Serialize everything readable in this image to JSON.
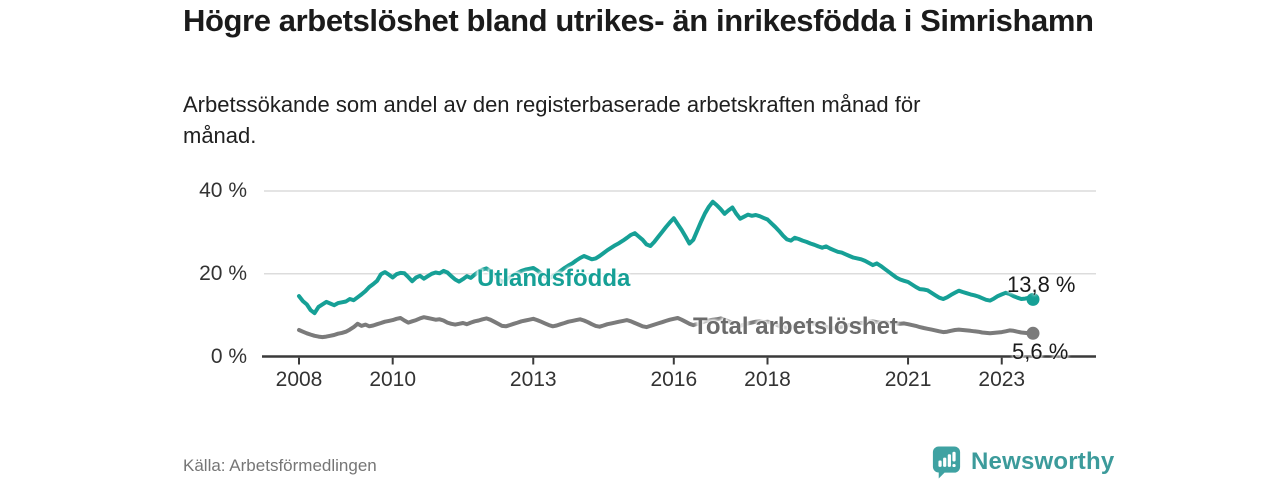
{
  "header": {
    "title": "Högre arbetslöshet bland utrikes- än inrikesfödda i Simrishamn",
    "subtitle": "Arbetssökande som andel av den registerbaserade arbetskraften månad för månad."
  },
  "footer": {
    "source": "Källa: Arbetsförmedlingen",
    "brand_name": "Newsworthy",
    "brand_icon": "bar-chart-speech-bubble-icon",
    "brand_color": "#3c9b9b"
  },
  "chart_data": {
    "type": "line",
    "x_frequency": "monthly",
    "x_start": "2008-01",
    "x_end": "2023-09",
    "x_ticks": [
      2008,
      2010,
      2013,
      2016,
      2018,
      2021,
      2023
    ],
    "y_ticks": [
      {
        "value": 0,
        "label": "0 %"
      },
      {
        "value": 20,
        "label": "20 %"
      },
      {
        "value": 40,
        "label": "40 %"
      }
    ],
    "ylim": [
      0,
      42
    ],
    "value_unit": "%",
    "grid": "horizontal",
    "legend_position": "inline-labels",
    "series": [
      {
        "name": "Utlandsfödda",
        "color": "#16a096",
        "label_color": "#16a096",
        "end_label": "13,8 %",
        "end_value": 13.8,
        "values": [
          14.6,
          13.4,
          12.6,
          11.2,
          10.5,
          12.0,
          12.6,
          13.2,
          12.8,
          12.4,
          12.9,
          13.1,
          13.3,
          13.9,
          13.6,
          14.3,
          15.0,
          15.8,
          16.8,
          17.5,
          18.3,
          19.9,
          20.4,
          19.8,
          19.1,
          19.9,
          20.2,
          20.1,
          19.2,
          18.2,
          19.1,
          19.5,
          18.8,
          19.4,
          20.0,
          20.3,
          20.1,
          20.7,
          20.3,
          19.4,
          18.6,
          18.1,
          18.7,
          19.4,
          19.0,
          19.8,
          20.5,
          21.0,
          21.3,
          20.7,
          19.8,
          18.8,
          18.0,
          18.5,
          19.1,
          19.7,
          20.2,
          20.7,
          21.0,
          21.2,
          21.4,
          20.8,
          20.1,
          19.3,
          18.9,
          19.4,
          20.0,
          20.7,
          21.4,
          22.0,
          22.5,
          23.2,
          23.8,
          24.3,
          23.9,
          23.5,
          23.7,
          24.3,
          25.0,
          25.7,
          26.3,
          26.9,
          27.4,
          28.0,
          28.7,
          29.4,
          29.8,
          29.0,
          28.2,
          27.1,
          26.7,
          27.7,
          28.9,
          30.1,
          31.3,
          32.4,
          33.4,
          32.0,
          30.6,
          29.0,
          27.3,
          28.2,
          30.4,
          32.6,
          34.6,
          36.2,
          37.4,
          36.6,
          35.6,
          34.5,
          35.3,
          36.0,
          34.5,
          33.3,
          33.8,
          34.3,
          34.0,
          34.2,
          33.9,
          33.5,
          33.1,
          32.2,
          31.3,
          30.3,
          29.2,
          28.3,
          28.0,
          28.7,
          28.4,
          28.0,
          27.7,
          27.3,
          27.0,
          26.6,
          26.3,
          26.6,
          26.1,
          25.7,
          25.3,
          25.1,
          24.7,
          24.3,
          23.9,
          23.7,
          23.5,
          23.1,
          22.6,
          22.1,
          22.5,
          21.9,
          21.2,
          20.5,
          19.8,
          19.1,
          18.6,
          18.3,
          18.0,
          17.4,
          16.8,
          16.3,
          16.2,
          16.0,
          15.4,
          14.8,
          14.2,
          13.9,
          14.3,
          14.9,
          15.4,
          15.9,
          15.6,
          15.3,
          15.0,
          14.8,
          14.5,
          14.1,
          13.7,
          13.5,
          14.0,
          14.6,
          15.0,
          15.4,
          15.1,
          14.6,
          14.2,
          13.9,
          14.0,
          14.2,
          13.8
        ]
      },
      {
        "name": "Total arbetslöshet",
        "color": "#7b7b7b",
        "label_color": "#6b6b6b",
        "end_label": "5,6 %",
        "end_value": 5.6,
        "values": [
          6.4,
          6.0,
          5.6,
          5.3,
          5.0,
          4.8,
          4.7,
          4.8,
          5.0,
          5.2,
          5.5,
          5.7,
          6.0,
          6.5,
          7.1,
          7.9,
          7.4,
          7.7,
          7.3,
          7.5,
          7.8,
          8.1,
          8.4,
          8.6,
          8.8,
          9.1,
          9.3,
          8.7,
          8.2,
          8.5,
          8.8,
          9.2,
          9.5,
          9.3,
          9.1,
          8.9,
          9.0,
          8.7,
          8.2,
          7.9,
          7.7,
          7.9,
          8.1,
          7.8,
          8.2,
          8.5,
          8.7,
          9.0,
          9.2,
          8.9,
          8.4,
          7.9,
          7.4,
          7.3,
          7.6,
          7.9,
          8.2,
          8.5,
          8.7,
          8.9,
          9.1,
          8.8,
          8.4,
          8.0,
          7.6,
          7.3,
          7.5,
          7.8,
          8.1,
          8.4,
          8.6,
          8.8,
          9.0,
          8.7,
          8.3,
          7.8,
          7.4,
          7.2,
          7.5,
          7.8,
          8.0,
          8.2,
          8.4,
          8.6,
          8.8,
          8.5,
          8.1,
          7.7,
          7.3,
          7.1,
          7.4,
          7.7,
          8.0,
          8.3,
          8.6,
          8.9,
          9.1,
          9.3,
          8.9,
          8.4,
          7.9,
          7.6,
          7.9,
          8.2,
          8.5,
          8.7,
          8.9,
          9.0,
          9.2,
          8.9,
          8.5,
          8.1,
          7.7,
          7.4,
          7.7,
          8.0,
          8.2,
          8.4,
          8.5,
          8.3,
          8.4,
          8.1,
          7.8,
          7.4,
          7.1,
          6.9,
          7.1,
          7.4,
          7.6,
          7.7,
          7.8,
          7.9,
          8.0,
          7.8,
          7.5,
          7.2,
          6.9,
          6.8,
          7.0,
          7.2,
          7.4,
          7.6,
          7.8,
          8.0,
          8.1,
          8.2,
          8.4,
          8.5,
          8.3,
          8.2,
          8.3,
          8.1,
          8.0,
          8.0,
          7.9,
          8.0,
          7.8,
          7.6,
          7.4,
          7.1,
          6.9,
          6.7,
          6.5,
          6.3,
          6.1,
          5.9,
          6.0,
          6.2,
          6.4,
          6.5,
          6.4,
          6.3,
          6.2,
          6.1,
          6.0,
          5.8,
          5.7,
          5.6,
          5.7,
          5.8,
          5.9,
          6.1,
          6.3,
          6.2,
          6.0,
          5.8,
          5.7,
          5.6,
          5.6
        ]
      }
    ]
  }
}
